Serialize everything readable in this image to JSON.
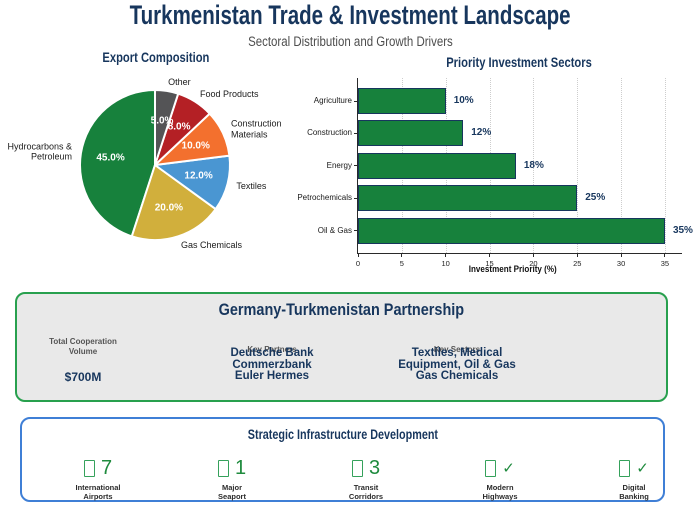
{
  "header": {
    "title": "Turkmenistan Trade & Investment Landscape",
    "subtitle": "Sectoral Distribution and Growth Drivers"
  },
  "colors": {
    "navy": "#17365d",
    "green": "#17813c",
    "subtitle_gray": "#4d4d4d",
    "partnership_panel_bg": "#e9e9e9",
    "partnership_border_green": "#28a04e",
    "infrastructure_border_blue": "#3f7fd6",
    "infrastructure_green": "#1f8b3e",
    "white": "#ffffff"
  },
  "chart_data": [
    {
      "type": "pie",
      "title": "Export Composition",
      "start_angle": 90,
      "counterclockwise": true,
      "slices": [
        {
          "label": "Hydrocarbons &\nPetroleum",
          "value": 45.0,
          "pct_label": "45.0%",
          "color": "#17813c"
        },
        {
          "label": "Gas Chemicals",
          "value": 20.0,
          "pct_label": "20.0%",
          "color": "#d1af3c"
        },
        {
          "label": "Textiles",
          "value": 12.0,
          "pct_label": "12.0%",
          "color": "#4a96d2"
        },
        {
          "label": "Construction\nMaterials",
          "value": 10.0,
          "pct_label": "10.0%",
          "color": "#f3702e"
        },
        {
          "label": "Food Products",
          "value": 8.0,
          "pct_label": "8.0%",
          "color": "#b42025"
        },
        {
          "label": "Other",
          "value": 5.0,
          "pct_label": "5.0%",
          "color": "#545456"
        }
      ]
    },
    {
      "type": "bar",
      "orientation": "horizontal",
      "title": "Priority Investment Sectors",
      "categories": [
        "Agriculture",
        "Construction",
        "Energy",
        "Petrochemicals",
        "Oil & Gas"
      ],
      "values": [
        10,
        12,
        18,
        25,
        35
      ],
      "value_labels": [
        "10%",
        "12%",
        "18%",
        "25%",
        "35%"
      ],
      "xlabel": "Investment Priority (%)",
      "xlim": [
        0,
        36.5
      ],
      "xticks": [
        0,
        5,
        10,
        15,
        20,
        25,
        30,
        35
      ],
      "grid": true,
      "bar_color": "#17813c",
      "bar_edge_color": "#17365d"
    }
  ],
  "partnership": {
    "title": "Germany-Turkmenistan Partnership",
    "columns": [
      {
        "heading": "Total Cooperation\nVolume",
        "value": "$700M"
      },
      {
        "heading": "Key Partners",
        "value": "Deutsche Bank\nCommerzbank\nEuler Hermes"
      },
      {
        "heading": "Key Sectors",
        "value": "Textiles, Medical\nEquipment, Oil & Gas\nGas Chemicals"
      }
    ]
  },
  "infrastructure": {
    "title": "Strategic Infrastructure Development",
    "items": [
      {
        "icon": "missing-glyph-box-icon",
        "value": "7",
        "label": "International\nAirports"
      },
      {
        "icon": "missing-glyph-box-icon",
        "value": "1",
        "label": "Major\nSeaport"
      },
      {
        "icon": "missing-glyph-box-icon",
        "value": "3",
        "label": "Transit\nCorridors"
      },
      {
        "icon": "missing-glyph-box-icon",
        "value": "✓",
        "label": "Modern\nHighways"
      },
      {
        "icon": "missing-glyph-box-icon",
        "value": "✓",
        "label": "Digital\nBanking"
      }
    ]
  }
}
